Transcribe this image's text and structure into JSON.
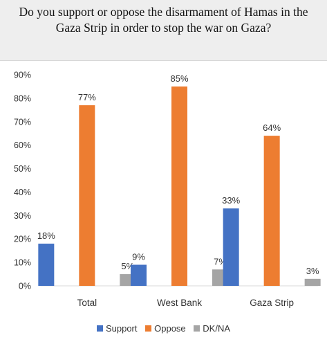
{
  "chart_data": {
    "type": "bar",
    "title": "Do you support or oppose the disarmament of Hamas in the\nGaza Strip in order to stop the war on Gaza?",
    "categories": [
      "Total",
      "West Bank",
      "Gaza Strip"
    ],
    "series": [
      {
        "name": "Support",
        "color": "#4472c4",
        "values": [
          18,
          9,
          33
        ],
        "labels": [
          "18%",
          "9%",
          "33%"
        ]
      },
      {
        "name": "Oppose",
        "color": "#ed7d31",
        "values": [
          77,
          85,
          64
        ],
        "labels": [
          "77%",
          "85%",
          "64%"
        ]
      },
      {
        "name": "DK/NA",
        "color": "#a5a5a5",
        "values": [
          5,
          7,
          3
        ],
        "labels": [
          "5%",
          "7%",
          "3%"
        ]
      }
    ],
    "ylim": [
      0,
      90
    ],
    "yticks": [
      "0%",
      "10%",
      "20%",
      "30%",
      "40%",
      "50%",
      "60%",
      "70%",
      "80%",
      "90%"
    ],
    "grid": false,
    "legend": "bottom"
  }
}
